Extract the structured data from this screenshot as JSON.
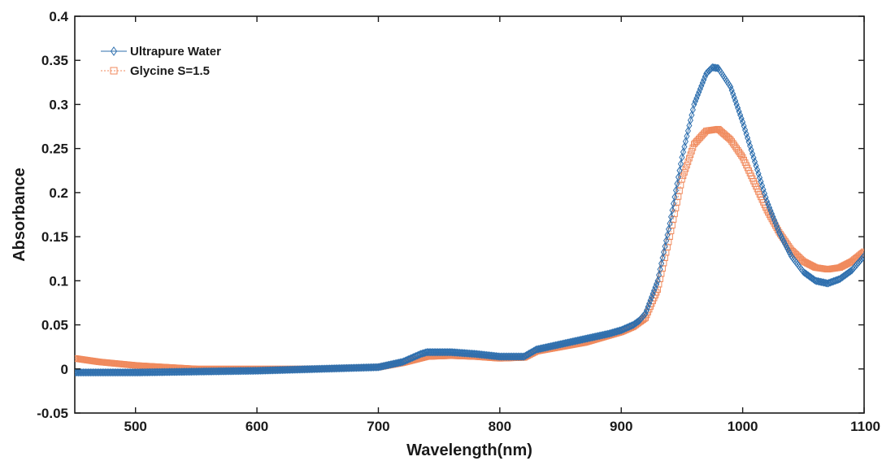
{
  "chart_data": {
    "type": "scatter",
    "xlabel": "Wavelength(nm)",
    "ylabel": "Absorbance",
    "xlim": [
      450,
      1100
    ],
    "ylim": [
      -0.05,
      0.4
    ],
    "x_ticks": [
      500,
      600,
      700,
      800,
      900,
      1000,
      1100
    ],
    "y_ticks": [
      -0.05,
      0,
      0.05,
      0.1,
      0.15,
      0.2,
      0.25,
      0.3,
      0.35,
      0.4
    ],
    "x_tick_labels": [
      "500",
      "600",
      "700",
      "800",
      "900",
      "1000",
      "1100"
    ],
    "y_tick_labels": [
      "-0.05",
      "0",
      "0.05",
      "0.1",
      "0.15",
      "0.2",
      "0.25",
      "0.3",
      "0.35",
      "0.4"
    ],
    "grid": false,
    "legend_position": "top-left",
    "series": [
      {
        "name": "Ultrapure Water",
        "marker": "diamond",
        "color": "#2e6fae",
        "x": [
          450,
          470,
          500,
          550,
          600,
          650,
          700,
          720,
          735,
          740,
          760,
          780,
          800,
          820,
          830,
          850,
          870,
          890,
          900,
          910,
          915,
          920,
          930,
          940,
          950,
          960,
          970,
          975,
          980,
          990,
          1000,
          1010,
          1020,
          1030,
          1040,
          1050,
          1060,
          1070,
          1080,
          1090,
          1100
        ],
        "y": [
          -0.004,
          -0.004,
          -0.004,
          -0.003,
          -0.002,
          0.0,
          0.002,
          0.008,
          0.017,
          0.019,
          0.019,
          0.017,
          0.014,
          0.014,
          0.022,
          0.028,
          0.034,
          0.04,
          0.044,
          0.05,
          0.055,
          0.063,
          0.1,
          0.165,
          0.24,
          0.3,
          0.335,
          0.342,
          0.341,
          0.32,
          0.28,
          0.235,
          0.19,
          0.155,
          0.128,
          0.11,
          0.1,
          0.097,
          0.102,
          0.112,
          0.128
        ]
      },
      {
        "name": "Glycine S=1.5",
        "marker": "square",
        "color": "#f08a5d",
        "x": [
          450,
          470,
          500,
          550,
          600,
          650,
          700,
          720,
          740,
          760,
          780,
          800,
          820,
          830,
          850,
          870,
          890,
          900,
          910,
          920,
          930,
          940,
          950,
          960,
          970,
          980,
          990,
          1000,
          1010,
          1020,
          1030,
          1040,
          1050,
          1060,
          1070,
          1080,
          1090,
          1100
        ],
        "y": [
          0.012,
          0.008,
          0.004,
          0.0,
          0.0,
          0.0,
          0.002,
          0.007,
          0.014,
          0.015,
          0.014,
          0.012,
          0.013,
          0.02,
          0.025,
          0.03,
          0.038,
          0.042,
          0.048,
          0.058,
          0.09,
          0.15,
          0.215,
          0.255,
          0.27,
          0.272,
          0.26,
          0.24,
          0.21,
          0.18,
          0.155,
          0.135,
          0.122,
          0.115,
          0.113,
          0.115,
          0.122,
          0.133
        ]
      }
    ]
  }
}
